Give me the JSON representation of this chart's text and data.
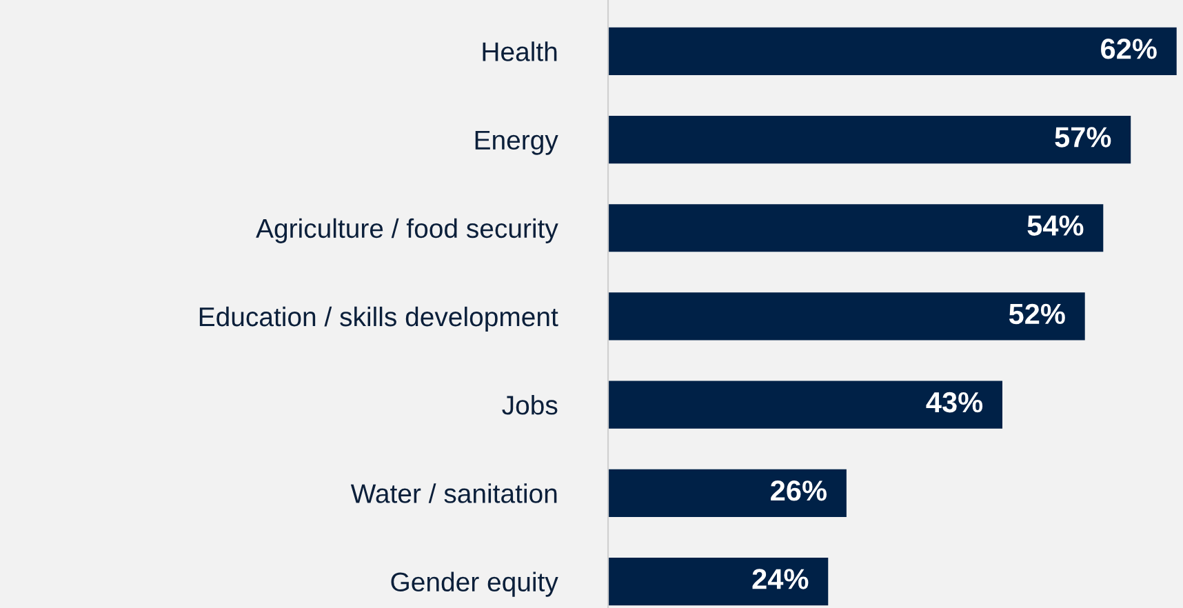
{
  "chart_data": {
    "type": "bar",
    "orientation": "horizontal",
    "categories": [
      "Health",
      "Energy",
      "Agriculture / food security",
      "Education / skills development",
      "Jobs",
      "Water / sanitation",
      "Gender equity"
    ],
    "values": [
      62,
      57,
      54,
      52,
      43,
      26,
      24
    ],
    "value_labels": [
      "62%",
      "57%",
      "54%",
      "52%",
      "43%",
      "26%",
      "24%"
    ],
    "color": "#002147",
    "grid": false,
    "legend": false
  }
}
